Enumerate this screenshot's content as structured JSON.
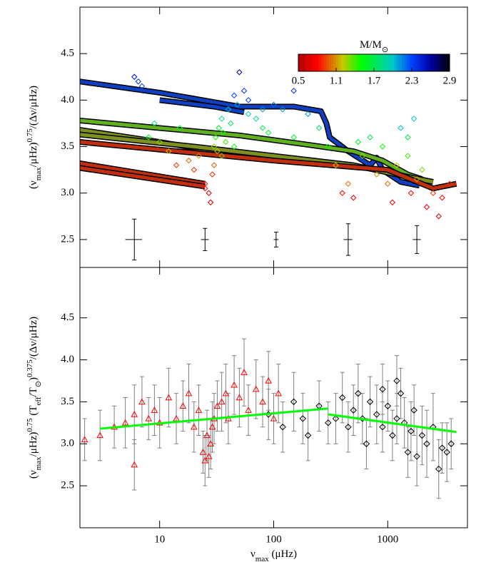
{
  "chart_data": [
    {
      "type": "scatter",
      "ylabel": [
        {
          "text": "(ν"
        },
        {
          "sub": "max"
        },
        {
          "text": "/μHz)"
        },
        {
          "sup": "0.75"
        },
        {
          "text": "/(Δν/μHz)"
        }
      ],
      "xlim": [
        2,
        5000
      ],
      "ylim": [
        2.2,
        5.0
      ],
      "log_x": true,
      "yticks": [
        2.5,
        {
          "value": 3,
          "label": "3.0"
        },
        3.5,
        {
          "value": 4,
          "label": "4.0"
        },
        4.5
      ],
      "colormap": [
        [
          0.5,
          "#b00000"
        ],
        [
          0.8,
          "#ff0000"
        ],
        [
          1.2,
          "#c8c800"
        ],
        [
          1.5,
          "#00ff00"
        ],
        [
          2.0,
          "#00c8c8"
        ],
        [
          2.3,
          "#0040ff"
        ],
        [
          2.6,
          "#0000a0"
        ],
        [
          2.9,
          "#000000"
        ]
      ],
      "colorbar": {
        "label": [
          {
            "text": "M/M"
          },
          {
            "sub": "⊙"
          }
        ],
        "range": [
          0.5,
          2.9
        ],
        "ticks": [
          0.5,
          1.1,
          1.7,
          2.3,
          2.9
        ]
      },
      "tracks": [
        {
          "color": "#1040c0",
          "x": [
            2,
            10,
            50,
            150,
            260,
            290,
            310,
            450,
            700,
            800,
            900,
            1300,
            1900
          ],
          "y": [
            4.2,
            4.08,
            3.93,
            3.93,
            3.88,
            3.75,
            3.6,
            3.45,
            3.3,
            3.38,
            3.25,
            3.12,
            3.08
          ]
        },
        {
          "color": "#1040c0",
          "x": [
            10,
            30,
            55
          ],
          "y": [
            4.0,
            3.93,
            3.87
          ]
        },
        {
          "color": "#60b020",
          "x": [
            2,
            10,
            50,
            200,
            500,
            900,
            1500,
            2000
          ],
          "y": [
            3.78,
            3.7,
            3.62,
            3.52,
            3.45,
            3.35,
            3.2,
            3.15
          ]
        },
        {
          "color": "#809020",
          "x": [
            2,
            10,
            30
          ],
          "y": [
            3.68,
            3.55,
            3.45
          ]
        },
        {
          "color": "#809020",
          "x": [
            2,
            20,
            100,
            500,
            1200,
            2500
          ],
          "y": [
            3.63,
            3.5,
            3.4,
            3.3,
            3.2,
            3.12
          ]
        },
        {
          "color": "#c03010",
          "x": [
            2,
            100,
            1000,
            2500,
            4000
          ],
          "y": [
            3.55,
            3.35,
            3.25,
            3.05,
            3.1
          ]
        },
        {
          "color": "#c03010",
          "x": [
            2,
            25
          ],
          "y": [
            3.32,
            3.1
          ]
        },
        {
          "color": "#c03010",
          "x": [
            2,
            25
          ],
          "y": [
            3.27,
            3.07
          ]
        }
      ],
      "points": {
        "x": [
          6,
          6.5,
          7,
          8,
          9,
          10,
          12,
          14,
          15,
          18,
          20,
          22,
          25,
          27,
          28,
          29,
          30,
          30,
          31,
          32,
          33,
          35,
          36,
          38,
          40,
          42,
          45,
          48,
          50,
          55,
          60,
          70,
          80,
          90,
          100,
          120,
          150,
          200,
          250,
          300,
          350,
          400,
          450,
          500,
          550,
          600,
          700,
          800,
          900,
          1000,
          1100,
          1200,
          1300,
          1500,
          1600,
          1800,
          2000,
          2200,
          2500,
          2800,
          3000,
          25,
          45,
          35,
          60,
          80,
          150,
          1500,
          1700,
          3500
        ],
        "y": [
          4.25,
          4.2,
          4.15,
          3.6,
          3.75,
          3.55,
          3.45,
          3.3,
          3.7,
          3.35,
          3.25,
          3.4,
          3.1,
          3.0,
          2.9,
          3.2,
          3.3,
          3.5,
          3.6,
          3.45,
          3.7,
          3.8,
          3.65,
          3.55,
          3.9,
          3.75,
          4.05,
          3.95,
          4.3,
          4.1,
          3.85,
          3.8,
          3.7,
          3.65,
          3.95,
          3.9,
          3.6,
          3.85,
          3.7,
          3.5,
          3.3,
          3.0,
          3.1,
          2.95,
          3.55,
          3.4,
          3.6,
          3.2,
          3.5,
          3.1,
          2.9,
          3.3,
          3.7,
          3.4,
          3.0,
          3.15,
          3.25,
          2.85,
          3.0,
          2.75,
          2.95,
          3.05,
          3.5,
          3.4,
          4.0,
          3.9,
          4.1,
          3.6,
          3.8,
          3.1
        ],
        "mass": [
          2.5,
          2.4,
          2.3,
          1.5,
          1.8,
          1.3,
          1.2,
          0.9,
          1.6,
          1.0,
          0.9,
          1.1,
          0.8,
          0.7,
          0.6,
          0.9,
          1.0,
          1.3,
          1.5,
          1.2,
          1.6,
          1.8,
          1.5,
          1.4,
          2.0,
          1.7,
          2.3,
          2.1,
          2.6,
          2.4,
          2.0,
          1.9,
          1.7,
          1.6,
          2.2,
          2.1,
          1.6,
          2.1,
          1.8,
          1.5,
          1.2,
          0.8,
          1.0,
          0.7,
          1.6,
          1.3,
          1.7,
          1.1,
          1.5,
          1.0,
          0.8,
          1.2,
          2.0,
          1.4,
          0.8,
          1.1,
          1.3,
          0.7,
          0.9,
          0.6,
          0.8,
          0.8,
          1.5,
          1.3,
          2.3,
          2.1,
          2.4,
          1.7,
          2.0,
          0.9
        ]
      },
      "error_bars": {
        "color": "#000000",
        "x": [
          6,
          25,
          105,
          450,
          1800
        ],
        "xerr": [
          1,
          2,
          5,
          40,
          150
        ],
        "y": [
          2.5,
          2.5,
          2.5,
          2.5,
          2.5
        ],
        "yerr": [
          0.22,
          0.12,
          0.08,
          0.17,
          0.15
        ]
      }
    },
    {
      "type": "scatter",
      "ylabel": [
        {
          "text": "(ν"
        },
        {
          "sub": "max"
        },
        {
          "text": "/μHz)"
        },
        {
          "sup": "0.75"
        },
        {
          "text": " (T"
        },
        {
          "sub": "eff"
        },
        {
          "text": "/T"
        },
        {
          "sub": "⊙"
        },
        {
          "text": ")"
        },
        {
          "sup": "0.375"
        },
        {
          "text": "/(Δν/μHz)"
        }
      ],
      "xlabel": [
        {
          "text": "ν"
        },
        {
          "sub": "max"
        },
        {
          "text": " (μHz)"
        }
      ],
      "xlim": [
        2,
        5000
      ],
      "ylim": [
        2.0,
        5.1
      ],
      "log_x": true,
      "xticks": [
        10,
        100,
        1000
      ],
      "yticks": [
        2.5,
        {
          "value": 3,
          "label": "3.0"
        },
        3.5,
        {
          "value": 4,
          "label": "4.0"
        },
        4.5
      ],
      "error_color": "#808080",
      "triangles": {
        "color": "#ff0000",
        "x": [
          2.2,
          3,
          4,
          5,
          6,
          6,
          7,
          8,
          9,
          10,
          12,
          14,
          16,
          18,
          20,
          22,
          24,
          25,
          26,
          27,
          28,
          29,
          30,
          32,
          35,
          38,
          40,
          45,
          50,
          55,
          60,
          70,
          80,
          90,
          100,
          110
        ],
        "y": [
          3.05,
          3.1,
          3.2,
          3.25,
          2.75,
          3.35,
          3.5,
          3.3,
          3.4,
          3.25,
          3.55,
          3.3,
          3.45,
          3.6,
          3.2,
          3.4,
          2.9,
          2.8,
          3.1,
          2.85,
          3.0,
          3.2,
          3.3,
          3.45,
          3.5,
          3.6,
          3.3,
          3.7,
          3.55,
          3.85,
          3.4,
          3.65,
          3.5,
          3.75,
          3.3,
          3.6
        ],
        "yerr": [
          0.25,
          0.3,
          0.25,
          0.3,
          0.3,
          0.35,
          0.3,
          0.25,
          0.3,
          0.3,
          0.35,
          0.3,
          0.3,
          0.35,
          0.3,
          0.3,
          0.25,
          0.3,
          0.3,
          0.25,
          0.3,
          0.3,
          0.3,
          0.3,
          0.35,
          0.35,
          0.3,
          0.35,
          0.35,
          0.4,
          0.3,
          0.35,
          0.3,
          0.35,
          0.3,
          0.35
        ]
      },
      "diamonds": {
        "color": "#000000",
        "x": [
          90,
          120,
          150,
          180,
          200,
          250,
          300,
          350,
          400,
          450,
          500,
          550,
          600,
          650,
          700,
          800,
          900,
          1000,
          1100,
          1200,
          1300,
          1400,
          1500,
          1600,
          1700,
          1800,
          2000,
          2200,
          2500,
          2800,
          3000,
          3300,
          3600,
          1200,
          900
        ],
        "y": [
          3.35,
          3.2,
          3.5,
          3.3,
          3.1,
          3.45,
          3.25,
          3.3,
          3.55,
          3.2,
          3.4,
          3.6,
          3.3,
          3.0,
          3.5,
          3.35,
          3.2,
          3.45,
          3.1,
          3.3,
          3.6,
          3.25,
          2.9,
          3.15,
          3.4,
          2.85,
          3.1,
          3.0,
          3.2,
          2.7,
          2.95,
          2.9,
          3.0,
          3.75,
          3.65
        ],
        "yerr": [
          0.3,
          0.3,
          0.35,
          0.3,
          0.3,
          0.3,
          0.25,
          0.3,
          0.3,
          0.3,
          0.3,
          0.35,
          0.3,
          0.3,
          0.3,
          0.35,
          0.3,
          0.3,
          0.3,
          0.3,
          0.3,
          0.3,
          0.3,
          0.35,
          0.3,
          0.35,
          0.35,
          0.4,
          0.4,
          0.35,
          0.3,
          0.35,
          0.3,
          0.3,
          0.3
        ]
      },
      "fits": [
        {
          "color": "#00ff00",
          "x": [
            3,
            300
          ],
          "y": [
            3.18,
            3.42
          ]
        },
        {
          "color": "#00ff00",
          "x": [
            300,
            4000
          ],
          "y": [
            3.35,
            3.14
          ]
        }
      ]
    }
  ]
}
